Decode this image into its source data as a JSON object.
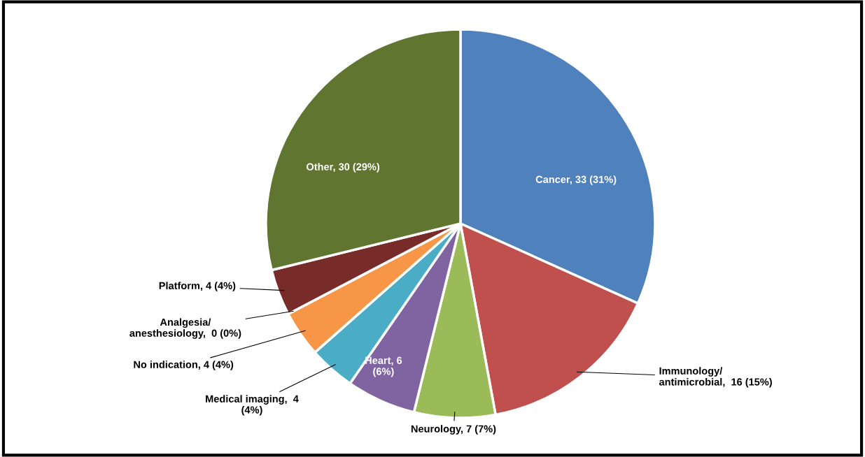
{
  "chart_data": {
    "type": "pie",
    "categories": [
      "Cancer",
      "Immunology/\nantimicrobial",
      "Neurology",
      "Heart",
      "Medical imaging",
      "No indication",
      "Analgesia/\nanesthesiology",
      "Platform",
      "Other"
    ],
    "values": [
      33,
      16,
      7,
      6,
      4,
      4,
      0,
      4,
      30
    ],
    "colors": [
      "#4f81bd",
      "#c0504d",
      "#9bbb59",
      "#8064a2",
      "#4bacc6",
      "#f79646",
      "#a5a5a5",
      "#772c2a",
      "#5f7530"
    ],
    "value_labels": [
      ", 33 (31%)",
      ",  16 (15%)",
      ", 7 (7%)",
      ", 6\n(6%)",
      ",  4\n(4%)",
      ", 4 (4%)",
      ",  0 (0%)",
      ", 4 (4%)",
      ", 30 (29%)"
    ],
    "legend": false
  }
}
